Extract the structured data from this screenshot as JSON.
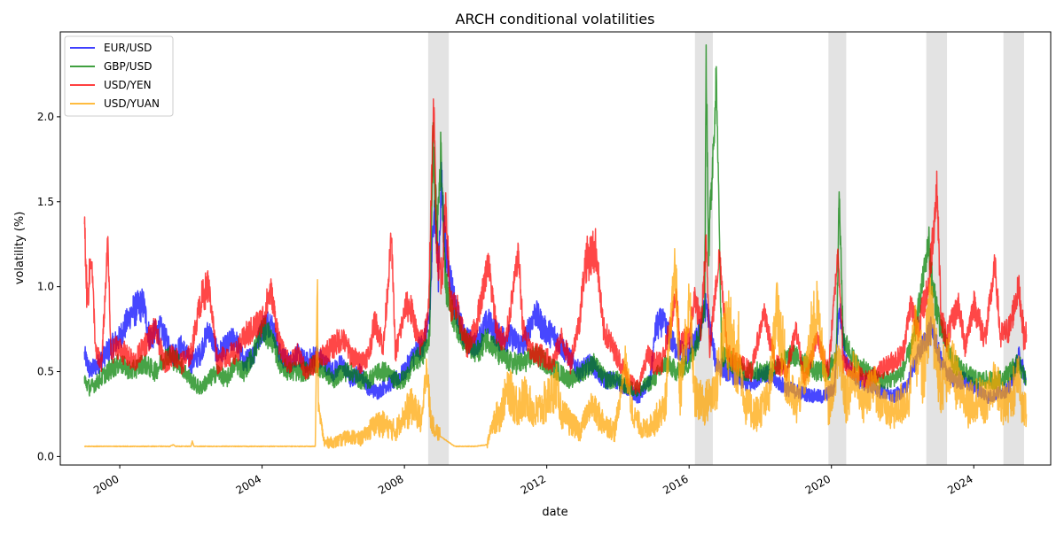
{
  "chart_data": {
    "type": "line",
    "title": "ARCH conditional volatilities",
    "xlabel": "date",
    "ylabel": "volatility (%)",
    "xlim": [
      "1998-05-01",
      "2026-03-01"
    ],
    "ylim": [
      -0.05,
      2.5
    ],
    "x_ticks": [
      "2000",
      "2004",
      "2008",
      "2012",
      "2016",
      "2020",
      "2024"
    ],
    "y_ticks": [
      "0.0",
      "0.5",
      "1.0",
      "1.5",
      "2.0"
    ],
    "y_tick_values": [
      0.0,
      0.5,
      1.0,
      1.5,
      2.0
    ],
    "legend_position": "top-left",
    "grid": false,
    "shaded_periods": [
      {
        "start": "2008-09-01",
        "end": "2009-04-01"
      },
      {
        "start": "2016-03-01",
        "end": "2016-09-01"
      },
      {
        "start": "2019-12-01",
        "end": "2020-06-01"
      },
      {
        "start": "2022-09-01",
        "end": "2023-04-01"
      },
      {
        "start": "2024-11-01",
        "end": "2025-06-01"
      }
    ],
    "series": [
      {
        "name": "EUR/USD",
        "color": "#0000ff",
        "x": [
          "1999-01-04",
          "1999-03-01",
          "1999-06-01",
          "1999-09-01",
          "2000-01-01",
          "2000-05-01",
          "2000-09-01",
          "2000-11-01",
          "2001-03-01",
          "2001-07-01",
          "2001-10-01",
          "2002-01-01",
          "2002-04-01",
          "2002-07-01",
          "2002-10-01",
          "2003-01-01",
          "2003-04-01",
          "2003-07-01",
          "2003-10-01",
          "2004-01-01",
          "2004-04-01",
          "2004-07-01",
          "2004-10-01",
          "2005-01-01",
          "2005-04-01",
          "2005-07-01",
          "2005-10-01",
          "2006-01-01",
          "2006-04-01",
          "2006-07-01",
          "2006-10-01",
          "2007-01-01",
          "2007-04-01",
          "2007-07-01",
          "2007-10-01",
          "2008-01-01",
          "2008-04-01",
          "2008-07-01",
          "2008-09-15",
          "2008-11-01",
          "2008-12-15",
          "2009-01-15",
          "2009-03-01",
          "2009-06-01",
          "2009-09-01",
          "2010-01-01",
          "2010-05-01",
          "2010-09-01",
          "2011-01-01",
          "2011-05-01",
          "2011-09-01",
          "2011-12-01",
          "2012-04-01",
          "2012-08-01",
          "2012-12-01",
          "2013-04-01",
          "2013-08-01",
          "2013-12-01",
          "2014-04-01",
          "2014-08-01",
          "2014-12-01",
          "2015-01-20",
          "2015-04-01",
          "2015-08-01",
          "2015-12-01",
          "2016-04-01",
          "2016-06-24",
          "2016-10-01",
          "2017-02-01",
          "2017-06-01",
          "2017-10-01",
          "2018-02-01",
          "2018-06-01",
          "2018-10-01",
          "2019-02-01",
          "2019-06-01",
          "2019-10-01",
          "2020-02-01",
          "2020-03-20",
          "2020-06-01",
          "2020-10-01",
          "2021-02-01",
          "2021-06-01",
          "2021-10-01",
          "2022-02-01",
          "2022-05-01",
          "2022-09-01",
          "2022-11-01",
          "2023-02-01",
          "2023-06-01",
          "2023-10-01",
          "2024-02-01",
          "2024-06-01",
          "2024-10-01",
          "2025-01-01",
          "2025-04-10",
          "2025-06-20"
        ],
        "y": [
          0.6,
          0.5,
          0.55,
          0.62,
          0.7,
          0.85,
          0.9,
          0.7,
          0.75,
          0.6,
          0.65,
          0.55,
          0.6,
          0.75,
          0.6,
          0.65,
          0.7,
          0.55,
          0.6,
          0.75,
          0.8,
          0.6,
          0.55,
          0.6,
          0.55,
          0.6,
          0.55,
          0.5,
          0.55,
          0.45,
          0.5,
          0.4,
          0.38,
          0.42,
          0.45,
          0.5,
          0.6,
          0.65,
          0.8,
          1.5,
          1.1,
          1.6,
          1.2,
          0.9,
          0.7,
          0.65,
          0.8,
          0.7,
          0.7,
          0.65,
          0.85,
          0.75,
          0.7,
          0.6,
          0.5,
          0.55,
          0.45,
          0.45,
          0.4,
          0.35,
          0.45,
          0.75,
          0.8,
          0.65,
          0.6,
          0.7,
          0.9,
          0.55,
          0.5,
          0.45,
          0.42,
          0.5,
          0.45,
          0.4,
          0.38,
          0.36,
          0.35,
          0.4,
          0.9,
          0.55,
          0.45,
          0.42,
          0.38,
          0.35,
          0.4,
          0.55,
          0.7,
          0.75,
          0.55,
          0.45,
          0.45,
          0.4,
          0.35,
          0.38,
          0.4,
          0.6,
          0.45
        ]
      },
      {
        "name": "GBP/USD",
        "color": "#008000",
        "x": [
          "1999-01-04",
          "1999-03-01",
          "1999-06-01",
          "1999-09-01",
          "2000-01-01",
          "2000-05-01",
          "2000-09-01",
          "2001-01-01",
          "2001-05-01",
          "2001-09-01",
          "2002-01-01",
          "2002-04-01",
          "2002-07-01",
          "2002-10-01",
          "2003-01-01",
          "2003-04-01",
          "2003-07-01",
          "2003-10-01",
          "2004-01-01",
          "2004-04-01",
          "2004-07-01",
          "2004-10-01",
          "2005-01-01",
          "2005-04-01",
          "2005-07-01",
          "2005-10-01",
          "2006-01-01",
          "2006-04-01",
          "2006-07-01",
          "2006-10-01",
          "2007-01-01",
          "2007-04-01",
          "2007-07-01",
          "2007-10-01",
          "2008-01-01",
          "2008-04-01",
          "2008-07-01",
          "2008-09-15",
          "2008-10-20",
          "2008-12-01",
          "2009-01-10",
          "2009-03-01",
          "2009-06-01",
          "2009-09-01",
          "2010-01-01",
          "2010-05-01",
          "2010-09-01",
          "2011-01-01",
          "2011-05-01",
          "2011-09-01",
          "2012-01-01",
          "2012-05-01",
          "2012-09-01",
          "2013-01-01",
          "2013-05-01",
          "2013-09-01",
          "2014-01-01",
          "2014-05-01",
          "2014-09-01",
          "2015-01-01",
          "2015-05-01",
          "2015-09-01",
          "2016-01-01",
          "2016-04-01",
          "2016-06-10",
          "2016-06-24",
          "2016-07-20",
          "2016-10-07",
          "2016-12-01",
          "2017-04-01",
          "2017-08-01",
          "2017-12-01",
          "2018-04-01",
          "2018-08-01",
          "2018-12-01",
          "2019-04-01",
          "2019-08-01",
          "2019-12-01",
          "2020-02-20",
          "2020-03-20",
          "2020-05-01",
          "2020-09-01",
          "2021-01-01",
          "2021-05-01",
          "2021-09-01",
          "2022-01-01",
          "2022-05-01",
          "2022-09-26",
          "2022-11-01",
          "2023-02-01",
          "2023-06-01",
          "2023-10-01",
          "2024-02-01",
          "2024-06-01",
          "2024-10-01",
          "2025-01-01",
          "2025-04-10",
          "2025-06-20"
        ],
        "y": [
          0.45,
          0.4,
          0.45,
          0.5,
          0.55,
          0.5,
          0.55,
          0.5,
          0.6,
          0.55,
          0.45,
          0.4,
          0.45,
          0.5,
          0.45,
          0.55,
          0.5,
          0.6,
          0.75,
          0.7,
          0.55,
          0.5,
          0.5,
          0.5,
          0.55,
          0.5,
          0.45,
          0.5,
          0.5,
          0.45,
          0.45,
          0.5,
          0.5,
          0.45,
          0.45,
          0.55,
          0.6,
          0.7,
          1.85,
          1.3,
          1.8,
          1.0,
          0.8,
          0.7,
          0.6,
          0.7,
          0.6,
          0.55,
          0.55,
          0.6,
          0.55,
          0.5,
          0.45,
          0.5,
          0.55,
          0.45,
          0.45,
          0.4,
          0.4,
          0.45,
          0.55,
          0.5,
          0.55,
          0.7,
          0.9,
          2.35,
          1.2,
          2.25,
          0.6,
          0.55,
          0.5,
          0.5,
          0.5,
          0.55,
          0.6,
          0.55,
          0.5,
          0.5,
          0.6,
          1.55,
          0.7,
          0.55,
          0.5,
          0.45,
          0.45,
          0.5,
          0.7,
          1.27,
          1.0,
          0.75,
          0.55,
          0.5,
          0.45,
          0.45,
          0.45,
          0.5,
          0.55,
          0.45
        ]
      },
      {
        "name": "USD/YEN",
        "color": "#ff0000",
        "x": [
          "1999-01-04",
          "1999-02-01",
          "1999-03-15",
          "1999-05-01",
          "1999-07-01",
          "1999-09-01",
          "1999-10-01",
          "1999-12-01",
          "2000-03-01",
          "2000-06-01",
          "2000-09-01",
          "2001-01-01",
          "2001-04-01",
          "2001-07-01",
          "2001-10-01",
          "2002-01-01",
          "2002-04-01",
          "2002-07-01",
          "2002-10-01",
          "2003-01-01",
          "2003-04-01",
          "2003-07-01",
          "2003-10-01",
          "2004-01-01",
          "2004-04-01",
          "2004-07-01",
          "2004-10-01",
          "2005-01-01",
          "2005-04-01",
          "2005-07-01",
          "2005-10-01",
          "2006-01-01",
          "2006-04-01",
          "2006-07-01",
          "2006-10-01",
          "2007-01-01",
          "2007-03-01",
          "2007-06-01",
          "2007-08-20",
          "2007-10-01",
          "2008-01-20",
          "2008-03-20",
          "2008-06-01",
          "2008-09-01",
          "2008-10-27",
          "2008-12-01",
          "2009-01-20",
          "2009-03-01",
          "2009-04-15",
          "2009-07-01",
          "2009-10-01",
          "2010-01-01",
          "2010-05-10",
          "2010-08-01",
          "2010-11-01",
          "2011-03-17",
          "2011-05-01",
          "2011-08-01",
          "2011-11-01",
          "2012-03-01",
          "2012-06-01",
          "2012-09-01",
          "2012-12-01",
          "2013-02-01",
          "2013-05-23",
          "2013-08-01",
          "2013-11-01",
          "2014-02-01",
          "2014-05-01",
          "2014-08-01",
          "2014-10-31",
          "2015-01-01",
          "2015-04-01",
          "2015-08-24",
          "2015-10-01",
          "2016-01-01",
          "2016-03-01",
          "2016-05-01",
          "2016-06-24",
          "2016-08-01",
          "2016-11-09",
          "2017-02-01",
          "2017-06-01",
          "2017-10-01",
          "2018-02-06",
          "2018-06-01",
          "2018-10-01",
          "2019-01-03",
          "2019-04-01",
          "2019-08-05",
          "2019-12-01",
          "2020-03-10",
          "2020-05-01",
          "2020-09-01",
          "2021-01-01",
          "2021-05-01",
          "2021-09-01",
          "2022-01-01",
          "2022-03-25",
          "2022-06-01",
          "2022-09-22",
          "2022-12-20",
          "2023-02-01",
          "2023-04-01",
          "2023-07-28",
          "2023-10-01",
          "2024-01-01",
          "2024-03-20",
          "2024-05-01",
          "2024-08-05",
          "2024-10-01",
          "2025-01-01",
          "2025-04-07",
          "2025-06-01",
          "2025-06-25"
        ],
        "y": [
          1.38,
          0.9,
          1.2,
          0.6,
          0.55,
          1.28,
          0.6,
          0.65,
          0.6,
          0.55,
          0.65,
          0.75,
          0.55,
          0.6,
          0.55,
          0.6,
          0.9,
          1.02,
          0.55,
          0.6,
          0.6,
          0.7,
          0.75,
          0.8,
          0.98,
          0.65,
          0.55,
          0.6,
          0.5,
          0.55,
          0.6,
          0.65,
          0.7,
          0.6,
          0.55,
          0.6,
          0.8,
          0.65,
          1.3,
          0.6,
          0.9,
          0.85,
          0.65,
          0.8,
          2.08,
          1.2,
          1.05,
          1.5,
          0.9,
          0.85,
          0.65,
          0.75,
          1.15,
          0.75,
          0.65,
          1.2,
          0.75,
          0.6,
          0.6,
          0.55,
          0.7,
          0.55,
          0.8,
          1.15,
          1.22,
          0.75,
          0.65,
          0.55,
          0.45,
          0.4,
          0.6,
          0.55,
          0.55,
          0.95,
          0.65,
          0.7,
          0.95,
          0.75,
          1.25,
          0.65,
          1.2,
          0.6,
          0.55,
          0.5,
          0.85,
          0.55,
          0.5,
          0.75,
          0.45,
          0.7,
          0.5,
          1.22,
          0.55,
          0.5,
          0.45,
          0.5,
          0.55,
          0.6,
          0.9,
          0.75,
          1.0,
          1.58,
          0.8,
          0.7,
          0.9,
          0.65,
          0.9,
          0.75,
          0.7,
          1.13,
          0.7,
          0.75,
          1.0,
          0.7,
          0.72
        ]
      },
      {
        "name": "USD/YUAN",
        "color": "#ffa500",
        "x": [
          "1999-01-04",
          "2001-06-01",
          "2001-07-01",
          "2001-08-01",
          "2002-01-01",
          "2002-01-15",
          "2002-02-01",
          "2005-07-01",
          "2005-07-21",
          "2005-08-01",
          "2005-10-01",
          "2006-01-01",
          "2006-04-01",
          "2006-07-01",
          "2006-10-01",
          "2007-01-01",
          "2007-04-01",
          "2007-07-01",
          "2007-10-01",
          "2008-01-01",
          "2008-04-01",
          "2008-07-01",
          "2008-08-15",
          "2008-10-01",
          "2009-01-01",
          "2009-06-01",
          "2010-01-01",
          "2010-05-01",
          "2010-06-21",
          "2010-09-01",
          "2010-12-01",
          "2011-03-01",
          "2011-06-01",
          "2011-09-01",
          "2011-12-01",
          "2012-04-16",
          "2012-06-01",
          "2012-09-01",
          "2012-12-01",
          "2013-04-01",
          "2013-08-01",
          "2013-12-01",
          "2014-03-17",
          "2014-06-01",
          "2014-10-01",
          "2015-01-01",
          "2015-05-01",
          "2015-08-11",
          "2015-10-01",
          "2016-01-07",
          "2016-03-01",
          "2016-06-01",
          "2016-10-01",
          "2017-01-05",
          "2017-05-26",
          "2017-08-01",
          "2017-12-01",
          "2018-04-01",
          "2018-06-20",
          "2018-10-01",
          "2019-01-01",
          "2019-05-10",
          "2019-08-05",
          "2019-12-01",
          "2020-03-20",
          "2020-06-01",
          "2020-09-01",
          "2020-12-01",
          "2021-03-01",
          "2021-06-01",
          "2021-09-01",
          "2021-12-01",
          "2022-03-01",
          "2022-04-25",
          "2022-08-01",
          "2022-10-25",
          "2022-12-01",
          "2023-02-01",
          "2023-05-01",
          "2023-08-01",
          "2023-11-01",
          "2024-02-01",
          "2024-05-01",
          "2024-08-05",
          "2024-11-01",
          "2025-02-01",
          "2025-04-08",
          "2025-05-01",
          "2025-06-25"
        ],
        "y": [
          0.06,
          0.06,
          0.07,
          0.06,
          0.06,
          0.09,
          0.06,
          0.06,
          1.06,
          0.3,
          0.08,
          0.08,
          0.1,
          0.12,
          0.1,
          0.15,
          0.2,
          0.18,
          0.15,
          0.25,
          0.3,
          0.2,
          0.55,
          0.2,
          0.12,
          0.06,
          0.06,
          0.07,
          0.2,
          0.25,
          0.4,
          0.3,
          0.35,
          0.25,
          0.3,
          0.42,
          0.25,
          0.2,
          0.15,
          0.3,
          0.2,
          0.15,
          0.55,
          0.25,
          0.15,
          0.2,
          0.3,
          1.15,
          0.4,
          0.9,
          0.35,
          0.3,
          0.4,
          0.75,
          0.6,
          0.3,
          0.25,
          0.35,
          0.88,
          0.45,
          0.3,
          0.55,
          0.9,
          0.3,
          0.6,
          0.35,
          0.5,
          0.3,
          0.45,
          0.3,
          0.25,
          0.3,
          0.35,
          0.7,
          0.5,
          0.9,
          0.6,
          0.45,
          0.55,
          0.4,
          0.3,
          0.35,
          0.3,
          0.45,
          0.3,
          0.35,
          0.55,
          0.3,
          0.25
        ]
      }
    ]
  }
}
